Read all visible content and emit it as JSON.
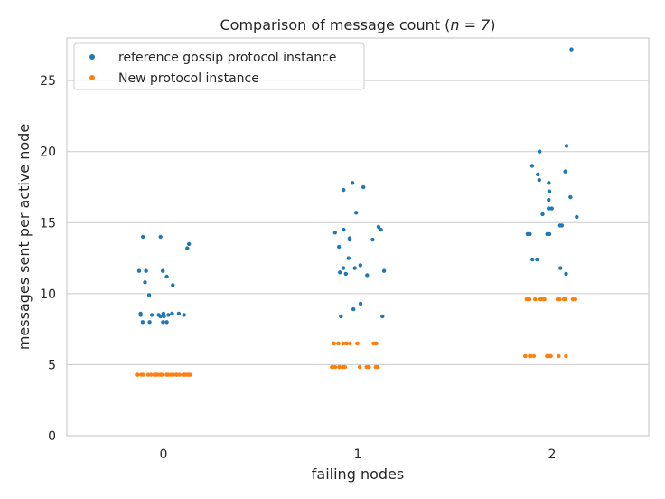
{
  "chart_data": {
    "type": "scatter",
    "title": "Comparison of message count (",
    "title_math": "n = 7",
    "title_end": ")",
    "xlabel": "failing nodes",
    "ylabel": "messages sent per active node",
    "categories": [
      "0",
      "1",
      "2"
    ],
    "ylim": [
      0,
      28
    ],
    "yticks": [
      0,
      5,
      10,
      15,
      20,
      25
    ],
    "grid": true,
    "legend_position": "top-left",
    "series": [
      {
        "name": "reference gossip protocol instance",
        "color": "#1f77b4",
        "points": [
          {
            "category": "0",
            "values": [
              8.0,
              8.0,
              8.0,
              8.0,
              8.4,
              8.4,
              8.5,
              8.5,
              8.5,
              8.5,
              8.5,
              8.6,
              8.6,
              8.6,
              8.6,
              9.9,
              10.6,
              10.8,
              11.2,
              11.6,
              11.6,
              11.6,
              13.2,
              13.5,
              14.0,
              14.0
            ]
          },
          {
            "category": "1",
            "values": [
              8.4,
              8.4,
              8.9,
              9.3,
              11.3,
              11.4,
              11.5,
              11.6,
              11.8,
              11.8,
              12.0,
              12.5,
              13.3,
              13.8,
              13.8,
              13.9,
              14.3,
              14.5,
              14.5,
              14.7,
              15.7,
              17.3,
              17.5,
              17.8
            ]
          },
          {
            "category": "2",
            "values": [
              11.4,
              11.8,
              12.4,
              12.4,
              14.2,
              14.2,
              14.2,
              14.2,
              14.8,
              14.8,
              15.4,
              15.6,
              16.0,
              16.0,
              16.6,
              16.8,
              17.2,
              17.8,
              18.0,
              18.4,
              18.6,
              19.0,
              20.0,
              20.4,
              27.2
            ]
          }
        ]
      },
      {
        "name": "New protocol instance",
        "color": "#ff7f0e",
        "points": [
          {
            "category": "0",
            "values": [
              4.29,
              4.29,
              4.29,
              4.29,
              4.29,
              4.29,
              4.29,
              4.29,
              4.29,
              4.29,
              4.29,
              4.29,
              4.29,
              4.29,
              4.29,
              4.29,
              4.29,
              4.29,
              4.29,
              4.29,
              4.29,
              4.29,
              4.29,
              4.29,
              4.29,
              4.29,
              4.29,
              4.29
            ]
          },
          {
            "category": "1",
            "values": [
              4.83,
              4.83,
              4.83,
              4.83,
              4.83,
              4.83,
              4.83,
              4.83,
              4.83,
              4.83,
              4.83,
              4.83,
              4.83,
              4.83,
              6.5,
              6.5,
              6.5,
              6.5,
              6.5,
              6.5,
              6.5,
              6.5,
              6.5,
              6.5,
              6.5,
              6.5,
              6.5
            ]
          },
          {
            "category": "2",
            "values": [
              5.6,
              5.6,
              5.6,
              5.6,
              5.6,
              5.6,
              5.6,
              5.6,
              5.6,
              5.6,
              5.6,
              9.6,
              9.6,
              9.6,
              9.6,
              9.6,
              9.6,
              9.6,
              9.6,
              9.6,
              9.6,
              9.6,
              9.6,
              9.6,
              9.6,
              9.6
            ]
          }
        ]
      }
    ]
  }
}
